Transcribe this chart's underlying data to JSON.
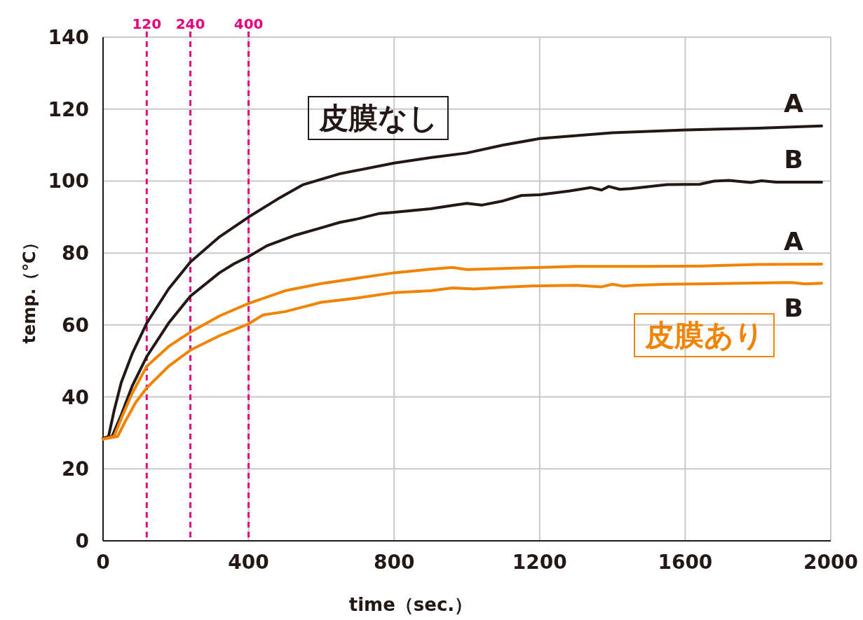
{
  "chart_data": {
    "type": "line",
    "xlabel": "time（sec.）",
    "ylabel": "temp.（℃）",
    "xlim": [
      0,
      2000
    ],
    "ylim": [
      0,
      140
    ],
    "xticks": [
      0,
      400,
      800,
      1200,
      1600,
      2000
    ],
    "yticks": [
      0,
      20,
      40,
      60,
      80,
      100,
      120,
      140
    ],
    "grid": true,
    "marker": "none",
    "line_style": "solid",
    "annotations": [
      "皮膜なし",
      "皮膜あり"
    ],
    "ref_lines": [
      {
        "axis": "x",
        "value": 120,
        "label": "120",
        "color": "#e4007f",
        "line_style": "dashed"
      },
      {
        "axis": "x",
        "value": 240,
        "label": "240",
        "color": "#e4007f",
        "line_style": "dashed"
      },
      {
        "axis": "x",
        "value": 400,
        "label": "400",
        "color": "#e4007f",
        "line_style": "dashed"
      }
    ],
    "series": [
      {
        "name": "A",
        "color": "#231815",
        "x": [
          0,
          15,
          30,
          50,
          80,
          120,
          180,
          240,
          320,
          400,
          480,
          550,
          650,
          800,
          900,
          1000,
          1100,
          1200,
          1400,
          1600,
          1800,
          1975
        ],
        "values": [
          28.5,
          29,
          36,
          44,
          52,
          60.5,
          70,
          77.5,
          84.5,
          90,
          95,
          99,
          102,
          105,
          106.5,
          107.8,
          110,
          111.8,
          113.4,
          114.2,
          114.7,
          115.3
        ]
      },
      {
        "name": "B",
        "color": "#231815",
        "x": [
          0,
          25,
          50,
          80,
          120,
          180,
          240,
          320,
          360,
          400,
          450,
          530,
          600,
          650,
          700,
          760,
          800,
          900,
          960,
          1000,
          1040,
          1100,
          1150,
          1200,
          1280,
          1340,
          1370,
          1390,
          1420,
          1450,
          1550,
          1640,
          1680,
          1720,
          1780,
          1810,
          1850,
          1975
        ],
        "values": [
          28.5,
          29,
          35,
          43,
          51.2,
          60.5,
          68,
          74.5,
          77,
          79,
          82,
          85,
          87,
          88.5,
          89.5,
          91,
          91.3,
          92.3,
          93.2,
          93.8,
          93.3,
          94.5,
          96,
          96.2,
          97.2,
          98.2,
          97.5,
          98.5,
          97.7,
          97.9,
          99,
          99.1,
          100,
          100.2,
          99.6,
          100.1,
          99.7,
          99.7
        ]
      },
      {
        "name": "A",
        "color": "#f08300",
        "x": [
          0,
          30,
          50,
          80,
          120,
          180,
          240,
          320,
          400,
          500,
          600,
          700,
          800,
          900,
          960,
          1000,
          1100,
          1300,
          1500,
          1650,
          1800,
          1975
        ],
        "values": [
          28.3,
          29,
          34,
          41,
          48.5,
          54,
          58,
          62.5,
          66,
          69.5,
          71.5,
          73,
          74.5,
          75.5,
          76,
          75.4,
          75.7,
          76.3,
          76.3,
          76.4,
          76.8,
          76.9
        ]
      },
      {
        "name": "B",
        "color": "#f08300",
        "x": [
          0,
          40,
          60,
          90,
          120,
          180,
          240,
          320,
          400,
          440,
          500,
          600,
          700,
          800,
          900,
          960,
          1020,
          1100,
          1200,
          1300,
          1370,
          1400,
          1430,
          1460,
          1550,
          1700,
          1890,
          1930,
          1975
        ],
        "values": [
          28.3,
          29,
          33,
          38.5,
          42.5,
          48.5,
          53,
          57,
          60.3,
          62.8,
          63.7,
          66.3,
          67.5,
          69,
          69.5,
          70.3,
          70,
          70.5,
          70.9,
          71,
          70.6,
          71.3,
          70.8,
          71,
          71.3,
          71.5,
          71.8,
          71.4,
          71.6
        ]
      }
    ]
  }
}
